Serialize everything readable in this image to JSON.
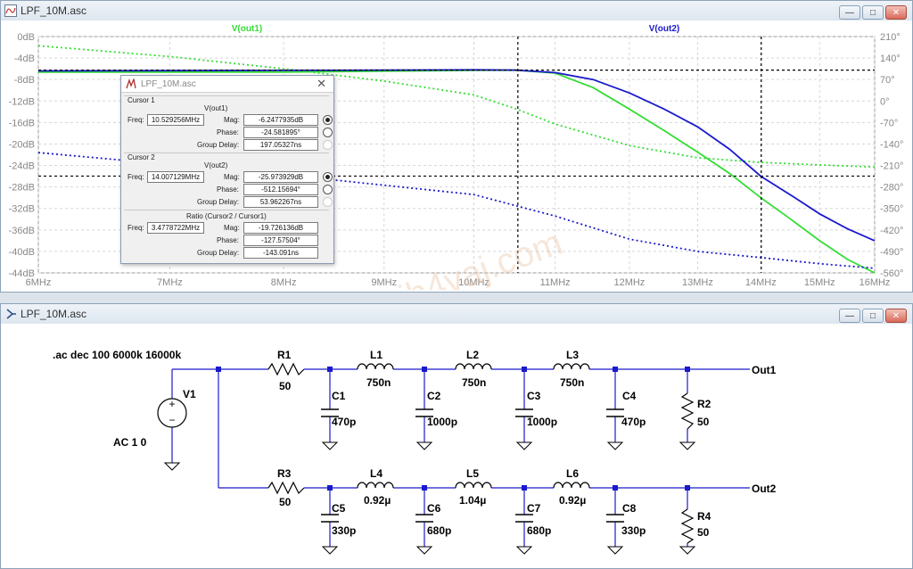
{
  "plot_window": {
    "title": "LPF_10M.asc",
    "trace1_label": "V(out1)",
    "trace2_label": "V(out2)",
    "colors": {
      "trace1": "#33dd33",
      "trace2": "#1a1acc",
      "grid": "#d8d8d8",
      "cursor": "#000000"
    }
  },
  "schematic_window": {
    "title": "LPF_10M.asc",
    "directive": ".ac dec 100 6000k 16000k",
    "source": {
      "name": "V1",
      "value": "AC 1 0"
    },
    "components": {
      "R1": "R1",
      "R1v": "50",
      "R2": "R2",
      "R2v": "50",
      "R3": "R3",
      "R3v": "50",
      "R4": "R4",
      "R4v": "50",
      "L1": "L1",
      "L1v": "750n",
      "L2": "L2",
      "L2v": "750n",
      "L3": "L3",
      "L3v": "750n",
      "L4": "L4",
      "L4v": "0.92µ",
      "L5": "L5",
      "L5v": "1.04µ",
      "L6": "L6",
      "L6v": "0.92µ",
      "C1": "C1",
      "C1v": "470p",
      "C2": "C2",
      "C2v": "1000p",
      "C3": "C3",
      "C3v": "1000p",
      "C4": "C4",
      "C4v": "470p",
      "C5": "C5",
      "C5v": "330p",
      "C6": "C6",
      "C6v": "680p",
      "C7": "C7",
      "C7v": "680p",
      "C8": "C8",
      "C8v": "330p"
    },
    "outputs": {
      "out1": "Out1",
      "out2": "Out2"
    }
  },
  "cursor_window": {
    "title": "LPF_10M.asc",
    "cursor1": {
      "header": "Cursor 1",
      "trace": "V(out1)",
      "freq_label": "Freq:",
      "freq": "10.529256MHz",
      "mag_label": "Mag:",
      "mag": "-6.2477935dB",
      "phase_label": "Phase:",
      "phase": "-24.581895°",
      "gd_label": "Group Delay:",
      "gd": "197.05327ns"
    },
    "cursor2": {
      "header": "Cursor 2",
      "trace": "V(out2)",
      "freq_label": "Freq:",
      "freq": "14.007129MHz",
      "mag_label": "Mag:",
      "mag": "-25.973929dB",
      "phase_label": "Phase:",
      "phase": "-512.15694°",
      "gd_label": "Group Delay:",
      "gd": "53.962267ns"
    },
    "ratio": {
      "header": "Ratio (Cursor2 / Cursor1)",
      "freq_label": "Freq:",
      "freq": "3.4778722MHz",
      "mag_label": "Mag:",
      "mag": "-19.726136dB",
      "phase_label": "Phase:",
      "phase": "-127.57504°",
      "gd_label": "Group Delay:",
      "gd": "-143.091ns"
    }
  },
  "watermark": "© jh4vaj.com",
  "chart_data": {
    "type": "line",
    "xscale": "log",
    "xlim": [
      6,
      16
    ],
    "x_ticks": [
      "6MHz",
      "7MHz",
      "8MHz",
      "9MHz",
      "10MHz",
      "11MHz",
      "12MHz",
      "13MHz",
      "14MHz",
      "15MHz",
      "16MHz"
    ],
    "ylim_left": [
      -44,
      0
    ],
    "y_ticks_left": [
      "0dB",
      "-4dB",
      "-8dB",
      "-12dB",
      "-16dB",
      "-20dB",
      "-24dB",
      "-28dB",
      "-32dB",
      "-36dB",
      "-40dB",
      "-44dB"
    ],
    "ylim_right": [
      -560,
      210
    ],
    "y_ticks_right": [
      "210°",
      "140°",
      "70°",
      "0°",
      "-70°",
      "-140°",
      "-210°",
      "-280°",
      "-350°",
      "-420°",
      "-490°",
      "-560°"
    ],
    "series": [
      {
        "name": "V(out1)",
        "axis": "left",
        "style": "solid",
        "color": "#33dd33",
        "x": [
          6,
          8,
          10,
          10.5,
          11,
          11.5,
          12,
          12.5,
          13,
          13.5,
          14,
          14.5,
          15,
          15.5,
          16
        ],
        "y": [
          -6.6,
          -6.6,
          -6.3,
          -6.25,
          -6.8,
          -9.5,
          -13.5,
          -17.5,
          -21.5,
          -25.5,
          -30,
          -34,
          -38,
          -41.5,
          -44
        ]
      },
      {
        "name": "V(out1)",
        "axis": "right",
        "style": "dotted",
        "color": "#33dd33",
        "x": [
          6,
          7,
          8,
          9,
          10,
          10.5,
          11,
          12,
          13,
          14,
          15,
          16
        ],
        "y": [
          180,
          145,
          105,
          65,
          20,
          -25,
          -75,
          -145,
          -185,
          -200,
          -208,
          -215
        ]
      },
      {
        "name": "V(out2)",
        "axis": "left",
        "style": "solid",
        "color": "#1a1acc",
        "x": [
          6,
          8,
          10,
          10.5,
          11,
          11.5,
          12,
          12.5,
          13,
          13.5,
          14,
          14.5,
          15,
          15.5,
          16
        ],
        "y": [
          -6.4,
          -6.3,
          -6.2,
          -6.25,
          -6.7,
          -8,
          -10.5,
          -13.5,
          -16.8,
          -21,
          -26,
          -29.5,
          -33,
          -35.8,
          -38
        ]
      },
      {
        "name": "V(out2)",
        "axis": "right",
        "style": "dotted",
        "color": "#1a1acc",
        "x": [
          6,
          8,
          10,
          11,
          12,
          13,
          14,
          15,
          16
        ],
        "y": [
          -168,
          -240,
          -305,
          -375,
          -450,
          -490,
          -510,
          -530,
          -545
        ]
      }
    ],
    "cursors": [
      {
        "x": 10.529256,
        "y": -6.2477935
      },
      {
        "x": 14.007129,
        "y": -25.973929
      }
    ]
  }
}
